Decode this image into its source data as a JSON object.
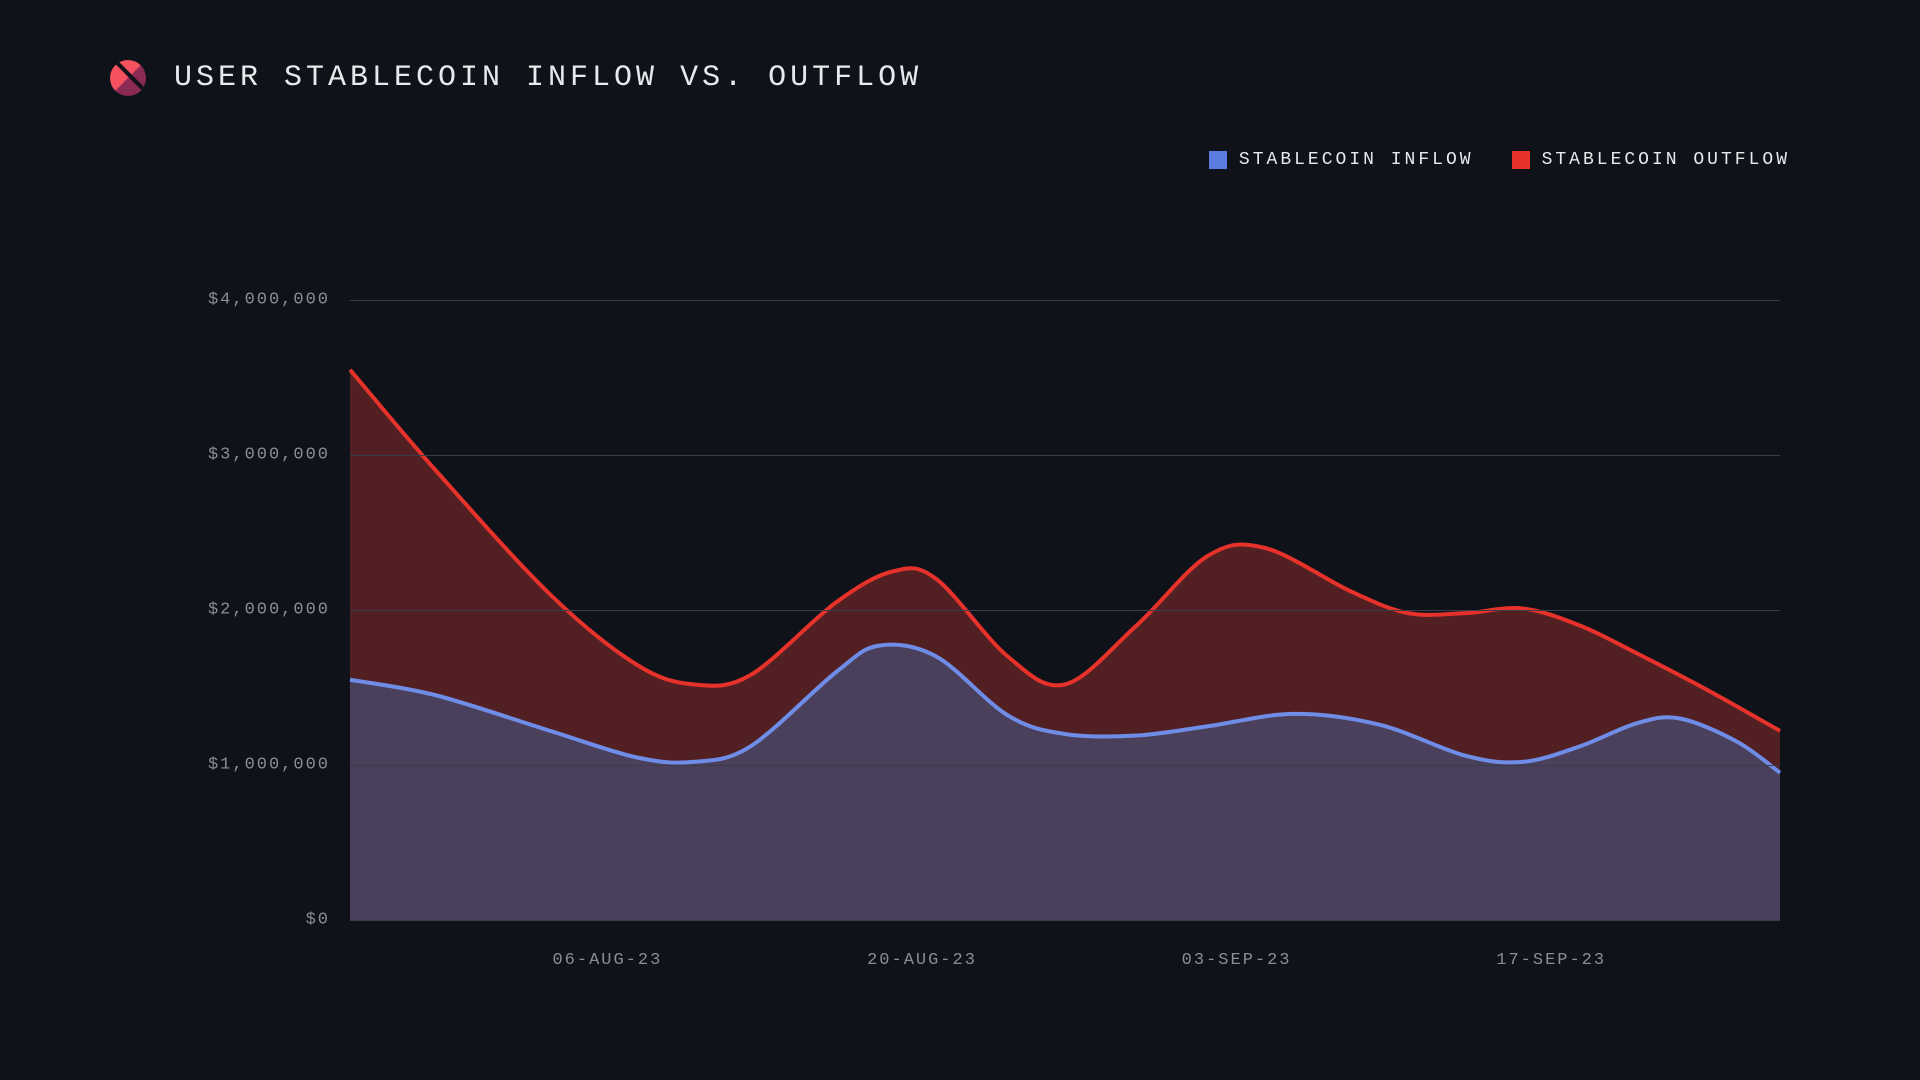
{
  "title": "USER STABLECOIN INFLOW VS. OUTFLOW",
  "legend": {
    "inflow": {
      "label": "STABLECOIN INFLOW",
      "color": "#5b7ce0"
    },
    "outflow": {
      "label": "STABLECOIN OUTFLOW",
      "color": "#e6322a"
    }
  },
  "chart": {
    "type": "area",
    "background_color": "#10121a",
    "grid_color": "#3a3d4a",
    "axis_text_color": "#8a8d99",
    "ylim": [
      0,
      4000000
    ],
    "ytick_step": 1000000,
    "ytick_labels": [
      "$0",
      "$1,000,000",
      "$2,000,000",
      "$3,000,000",
      "$4,000,000"
    ],
    "x_labels": [
      {
        "label": "06-AUG-23",
        "t": 0.18
      },
      {
        "label": "20-AUG-23",
        "t": 0.4
      },
      {
        "label": "03-SEP-23",
        "t": 0.62
      },
      {
        "label": "17-SEP-23",
        "t": 0.84
      }
    ],
    "line_width": 4,
    "inflow_stroke": "#6f8ce6",
    "inflow_fill": "#4a4766",
    "inflow_fill_opacity": 0.85,
    "outflow_stroke": "#e6322a",
    "outflow_fill": "#5e2326",
    "outflow_fill_opacity": 0.85,
    "series": {
      "outflow": [
        [
          0.0,
          3550000
        ],
        [
          0.06,
          2900000
        ],
        [
          0.14,
          2100000
        ],
        [
          0.2,
          1650000
        ],
        [
          0.24,
          1520000
        ],
        [
          0.28,
          1580000
        ],
        [
          0.34,
          2050000
        ],
        [
          0.38,
          2250000
        ],
        [
          0.41,
          2200000
        ],
        [
          0.46,
          1700000
        ],
        [
          0.5,
          1520000
        ],
        [
          0.55,
          1900000
        ],
        [
          0.6,
          2350000
        ],
        [
          0.64,
          2400000
        ],
        [
          0.7,
          2120000
        ],
        [
          0.74,
          1980000
        ],
        [
          0.78,
          1980000
        ],
        [
          0.82,
          2010000
        ],
        [
          0.86,
          1900000
        ],
        [
          0.9,
          1720000
        ],
        [
          0.95,
          1480000
        ],
        [
          1.0,
          1220000
        ]
      ],
      "inflow": [
        [
          0.0,
          1550000
        ],
        [
          0.06,
          1450000
        ],
        [
          0.14,
          1220000
        ],
        [
          0.2,
          1050000
        ],
        [
          0.24,
          1020000
        ],
        [
          0.28,
          1120000
        ],
        [
          0.34,
          1600000
        ],
        [
          0.37,
          1770000
        ],
        [
          0.41,
          1700000
        ],
        [
          0.46,
          1320000
        ],
        [
          0.5,
          1200000
        ],
        [
          0.55,
          1190000
        ],
        [
          0.6,
          1250000
        ],
        [
          0.66,
          1330000
        ],
        [
          0.72,
          1260000
        ],
        [
          0.78,
          1060000
        ],
        [
          0.82,
          1020000
        ],
        [
          0.86,
          1120000
        ],
        [
          0.9,
          1270000
        ],
        [
          0.93,
          1300000
        ],
        [
          0.97,
          1150000
        ],
        [
          1.0,
          950000
        ]
      ]
    }
  }
}
